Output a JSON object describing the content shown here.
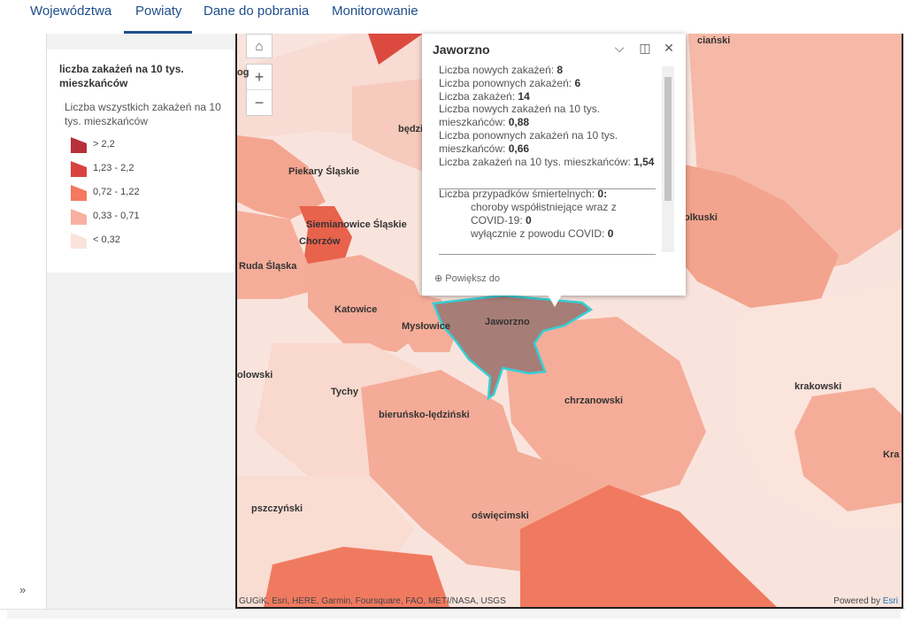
{
  "nav": {
    "tabs": [
      {
        "label": "Województwa"
      },
      {
        "label": "Powiaty"
      },
      {
        "label": "Dane do pobrania"
      },
      {
        "label": "Monitorowanie"
      }
    ],
    "active_tab": "Powiaty"
  },
  "sidebar": {
    "expand_label": "»"
  },
  "legend": {
    "title": "liczba zakażeń na 10 tys. mieszkańców",
    "subtitle": "Liczba wszystkich zakażeń na 10 tys. mieszkańców",
    "items": [
      {
        "label": "> 2,2",
        "color": "#b7303a"
      },
      {
        "label": "1,23 - 2,2",
        "color": "#d9433f"
      },
      {
        "label": "0,72 - 1,22",
        "color": "#f3795f"
      },
      {
        "label": "0,33 - 0,71",
        "color": "#f7b0a0"
      },
      {
        "label": "< 0,32",
        "color": "#fbe2da"
      }
    ]
  },
  "map": {
    "controls": {
      "zoom_in": "+",
      "zoom_out": "−"
    },
    "labels": [
      {
        "text": "ciański"
      },
      {
        "text": "będzin"
      },
      {
        "text": "Piekary Śląskie"
      },
      {
        "text": "Siemianowice Śląskie"
      },
      {
        "text": "Chorzów"
      },
      {
        "text": "Ruda Śląska"
      },
      {
        "text": "Katowice"
      },
      {
        "text": "Mysłowice"
      },
      {
        "text": "Jaworzno"
      },
      {
        "text": "olkuski"
      },
      {
        "text": "olowski"
      },
      {
        "text": "Tychy"
      },
      {
        "text": "bieruńsko-lędziński"
      },
      {
        "text": "chrzanowski"
      },
      {
        "text": "krakowski"
      },
      {
        "text": "Kra"
      },
      {
        "text": "pszczyński"
      },
      {
        "text": "oświęcimski"
      },
      {
        "text": "og"
      }
    ],
    "attribution": "GUGiK, Esri, HERE, Garmin, Foursquare, FAO, METI/NASA, USGS",
    "powered_prefix": "Powered by ",
    "powered_brand": "Esri"
  },
  "popup": {
    "title": "Jaworzno",
    "rows": [
      {
        "label": "Liczba nowych zakażeń: ",
        "value": "8"
      },
      {
        "label": "Liczba ponownych zakażeń: ",
        "value": "6"
      },
      {
        "label": "Liczba zakażeń: ",
        "value": "14"
      },
      {
        "label": "Liczba nowych zakażeń na 10 tys. mieszkańców: ",
        "value": "0,88"
      },
      {
        "label": "Liczba ponownych zakażeń na 10 tys. mieszkańców: ",
        "value": "0,66"
      },
      {
        "label": "Liczba zakażeń na 10 tys. mieszkańców: ",
        "value": "1,54"
      }
    ],
    "deaths": {
      "label": "Liczba przypadków śmiertelnych: ",
      "value": "0:",
      "comorb_label": "choroby współistniejące wraz z COVID-19: ",
      "comorb_value": "0",
      "covid_only_label": "wyłącznie z powodu COVID: ",
      "covid_only_value": "0"
    },
    "zoom_to": "Powiększ do"
  }
}
